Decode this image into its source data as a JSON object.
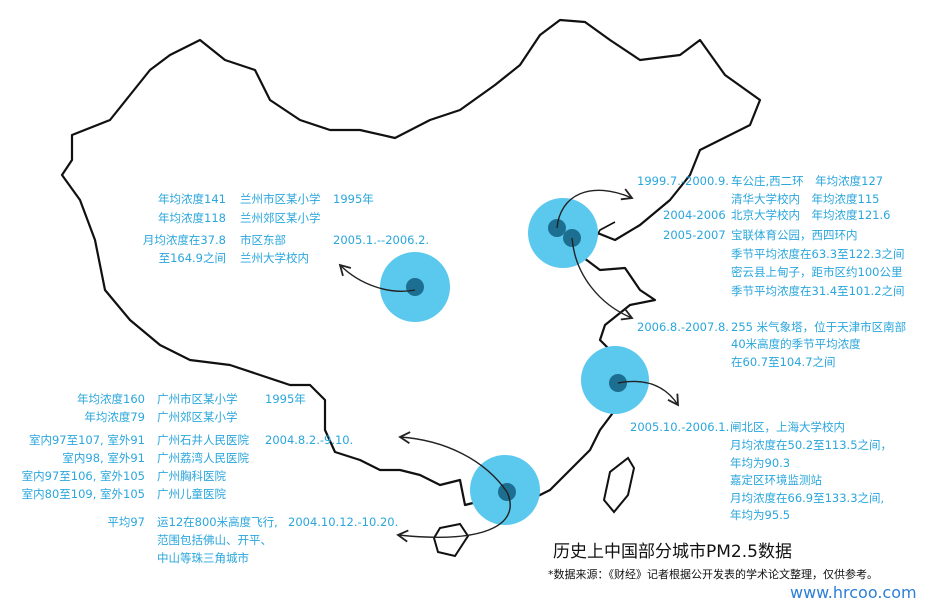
{
  "colors": {
    "text": "#2aa6dc",
    "circle": "#5bc8ee",
    "dot": "#1d6f91",
    "outline": "#111111"
  },
  "lanzhou": {
    "lines": [
      {
        "value": "年均浓度141",
        "site": "兰州市区某小学",
        "date": "1995年"
      },
      {
        "value": "年均浓度118",
        "site": "兰州郊区某小学"
      },
      {
        "value": "月均浓度在37.8",
        "site": "市区东部",
        "date": "2005.1.--2006.2."
      },
      {
        "value": "至164.9之间",
        "site": "兰州大学校内"
      }
    ]
  },
  "beijing": {
    "date1": "1999.7.-2000.9.",
    "line1": "车公庄,西二环　年均浓度127",
    "line2": "清华大学校内　年均浓度115",
    "date2": "2004-2006",
    "line3": "北京大学校内　年均浓度121.6",
    "date3": "2005-2007",
    "line4": "宝联体育公园，西四环内",
    "line5": "季节平均浓度在63.3至122.3之间",
    "line6": "密云县上甸子，距市区约100公里",
    "line7": "季节平均浓度在31.4至101.2之间"
  },
  "tianjin": {
    "date": "2006.8.-2007.8.",
    "line1": "255 米气象塔，位于天津市区南部",
    "line2": "40米高度的季节平均浓度",
    "line3": "在60.7至104.7之间"
  },
  "shanghai": {
    "date": "2005.10.-2006.1.",
    "line1": "闸北区，上海大学校内",
    "line2": "月均浓度在50.2至113.5之间，",
    "line3": "年均为90.3",
    "line4": "嘉定区环境监测站",
    "line5": "月均浓度在66.9至133.3之间,",
    "line6": "年均为95.5"
  },
  "guangzhou": {
    "lines": [
      {
        "value": "年均浓度160",
        "site": "广州市区某小学",
        "date": "1995年"
      },
      {
        "value": "年均浓度79",
        "site": "广州郊区某小学"
      },
      {
        "value": "室内97至107, 室外91",
        "site": "广州石井人民医院",
        "date": "2004.8.2.-9.10."
      },
      {
        "value": "室内98, 室外91",
        "site": "广州荔湾人民医院"
      },
      {
        "value": "室内97至106, 室外105",
        "site": "广州胸科医院"
      },
      {
        "value": "室内80至109, 室外105",
        "site": "广州儿童医院"
      }
    ],
    "flight": {
      "value": "平均97",
      "line1": "运12在800米高度飞行,",
      "date": "2004.10.12.-10.20.",
      "line2": "范围包括佛山、开平、",
      "line3": "中山等珠三角城市"
    }
  },
  "title": "历史上中国部分城市PM2.5数据",
  "note": "*数据来源：《财经》记者根据公开发表的学术论文整理，仅供参考。",
  "watermark": "www.hrcoo.com"
}
